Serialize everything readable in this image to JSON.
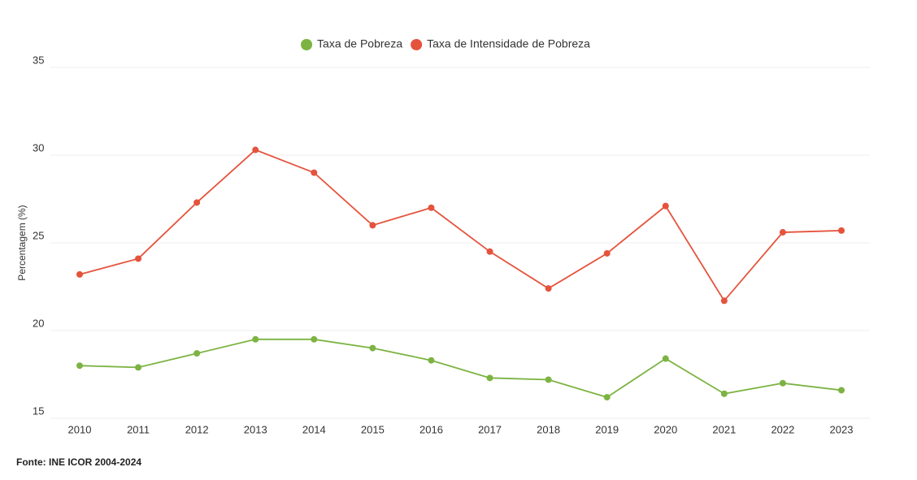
{
  "chart_data": {
    "type": "line",
    "y_label": "Percentagem (%)",
    "source": "Fonte: INE ICOR 2004-2024",
    "categories": [
      "2010",
      "2011",
      "2012",
      "2013",
      "2014",
      "2015",
      "2016",
      "2017",
      "2018",
      "2019",
      "2020",
      "2021",
      "2022",
      "2023"
    ],
    "series": [
      {
        "name": "Taxa de Pobreza",
        "color": "#7cb342",
        "values": [
          18.0,
          17.9,
          18.7,
          19.5,
          19.5,
          19.0,
          18.3,
          17.3,
          17.2,
          16.2,
          18.4,
          16.4,
          17.0,
          16.6
        ]
      },
      {
        "name": "Taxa de Intensidade de Pobreza",
        "color": "#e5533c",
        "values": [
          23.2,
          24.1,
          27.3,
          30.3,
          29.0,
          26.0,
          27.0,
          24.5,
          22.4,
          24.4,
          27.1,
          21.7,
          25.6,
          25.7
        ]
      }
    ],
    "ylim": [
      15,
      35
    ],
    "yticks": [
      15,
      20,
      25,
      30,
      35
    ],
    "grid": true,
    "legend": "top"
  }
}
